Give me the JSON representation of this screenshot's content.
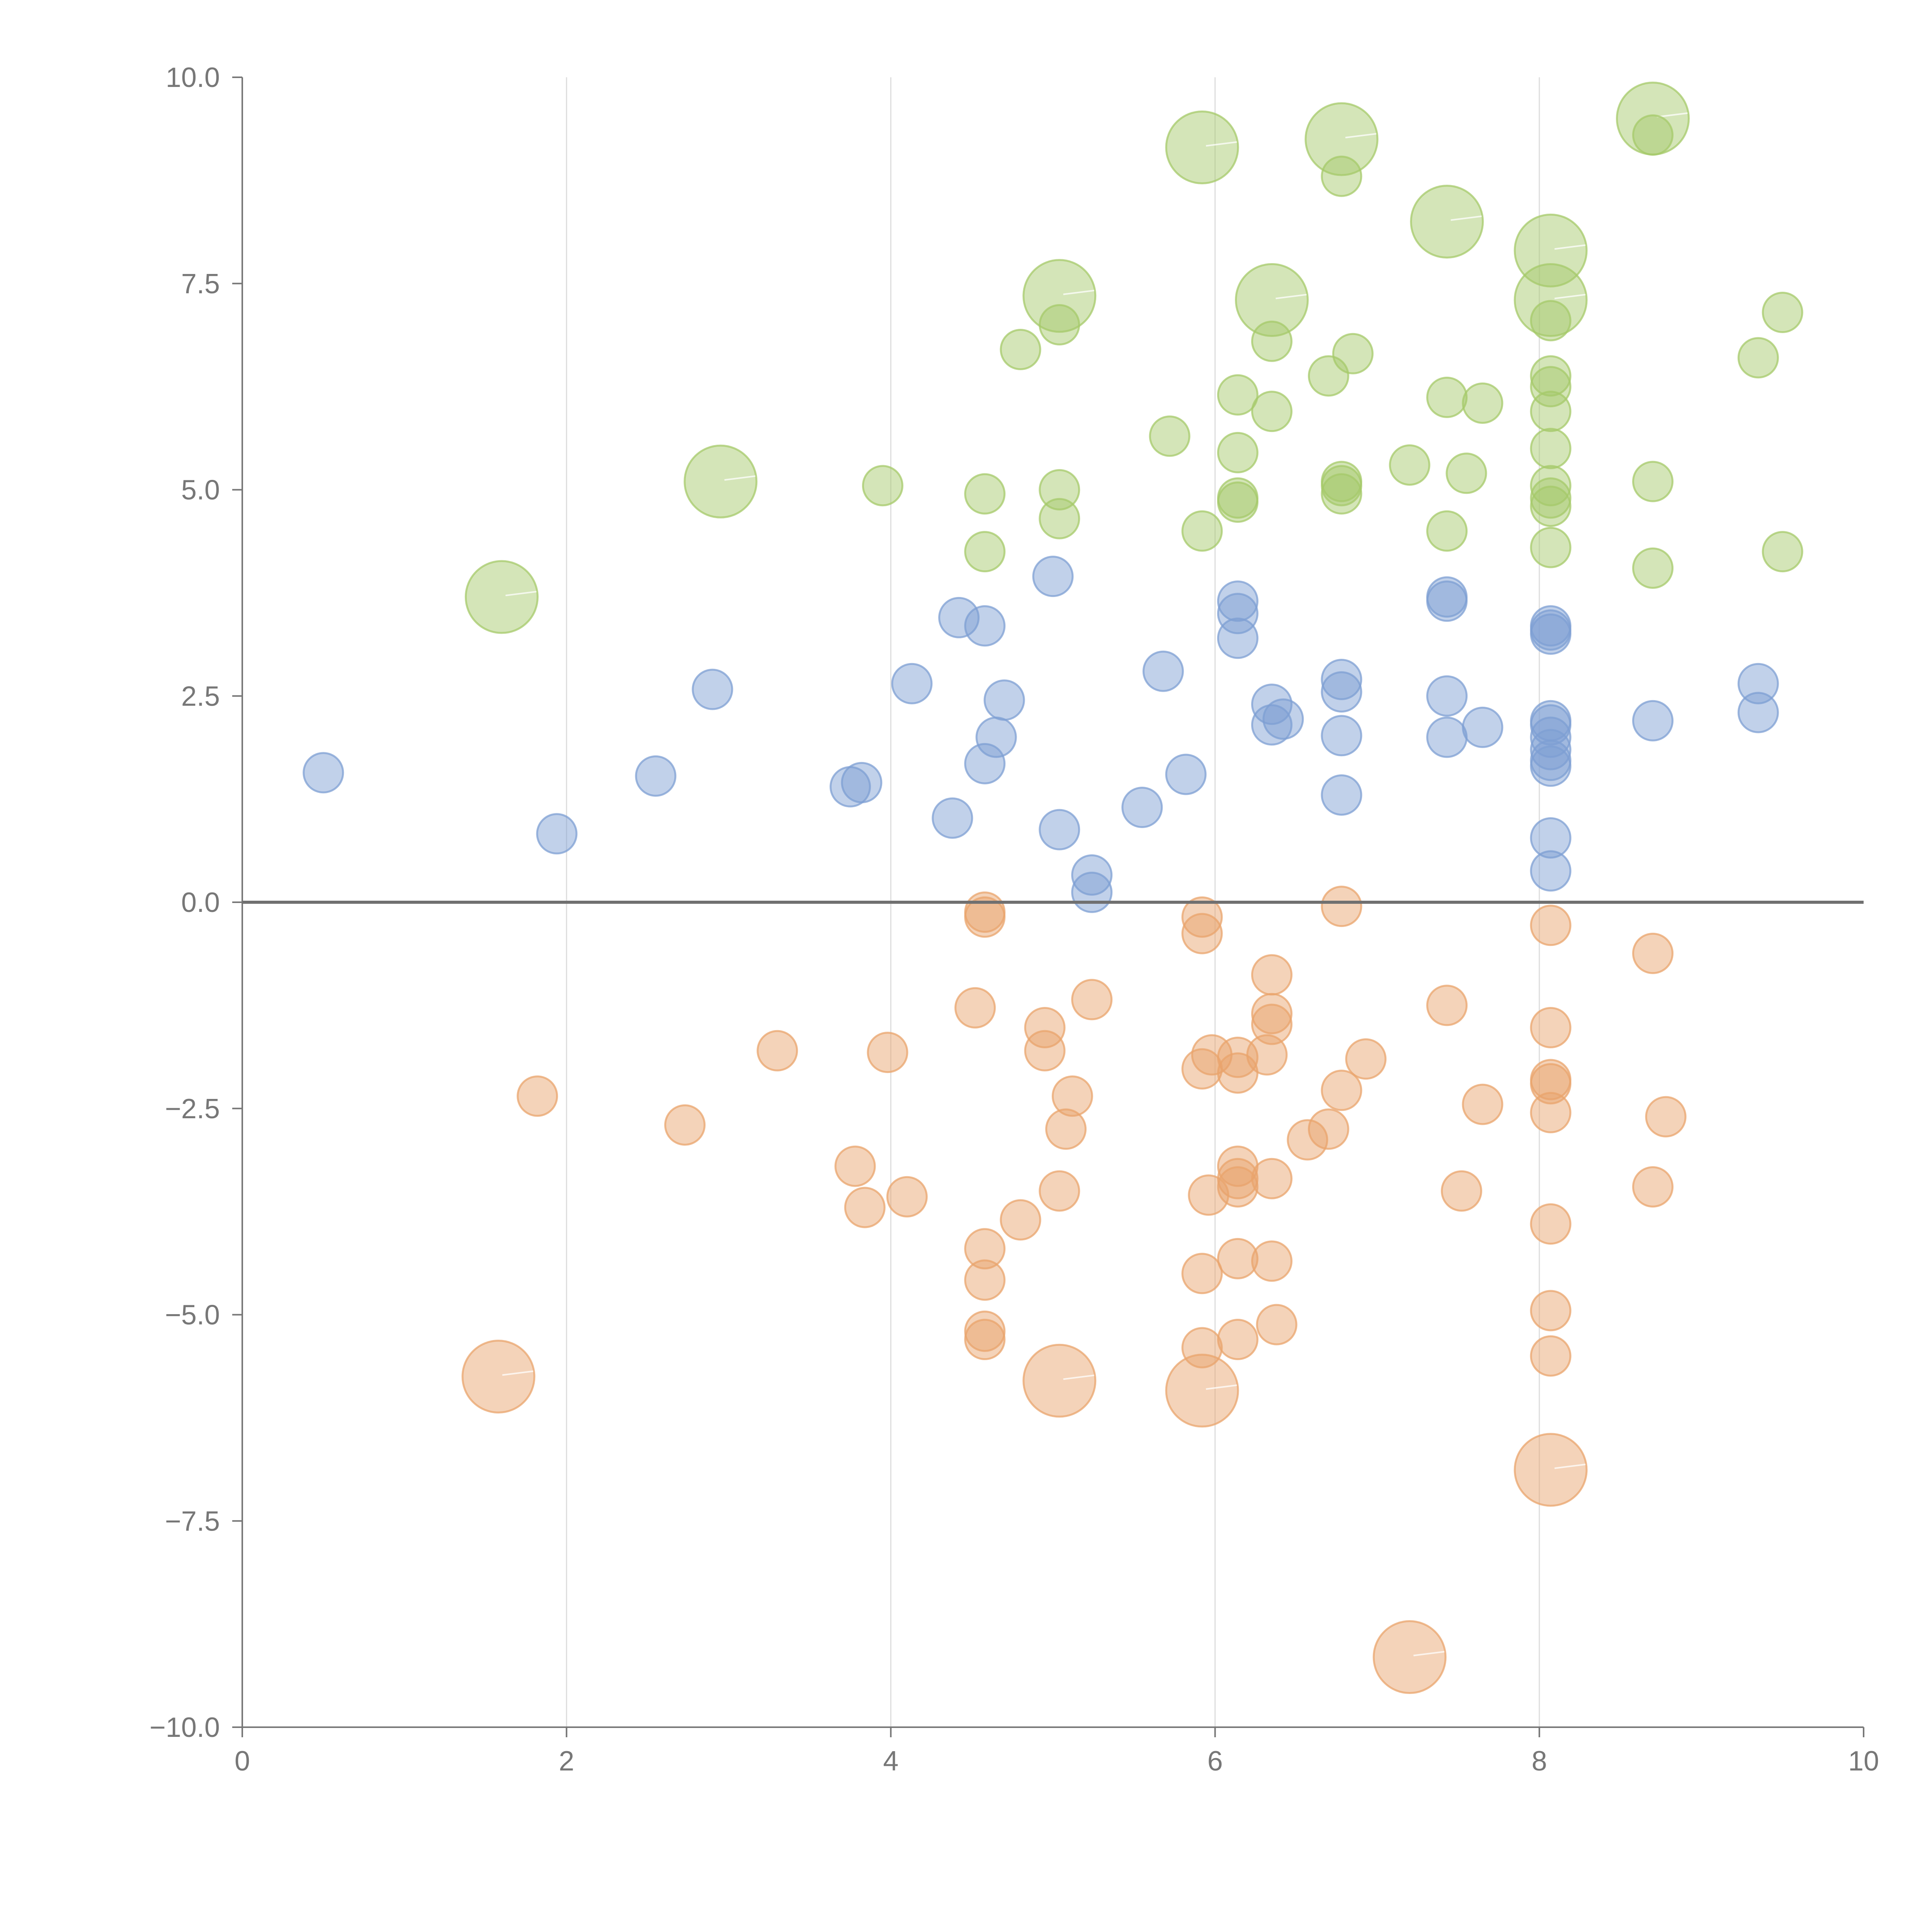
{
  "chart_data": {
    "type": "scatter",
    "title": "",
    "xlabel": "",
    "ylabel": "",
    "xlim": [
      0,
      10
    ],
    "ylim": [
      -10,
      10
    ],
    "grid": {
      "x": true,
      "y": false
    },
    "reference_line": {
      "y": 0
    },
    "x_ticks": [
      "0",
      "2",
      "4",
      "6",
      "8",
      "10"
    ],
    "x_tick_values": [
      0,
      2,
      4,
      6,
      8,
      10
    ],
    "y_ticks": [
      "10.0",
      "7.5",
      "5.0",
      "2.5",
      "0.0",
      "−2.5",
      "−5.0",
      "−7.5",
      "−10.0"
    ],
    "y_tick_values": [
      10,
      7.5,
      5,
      2.5,
      0,
      -2.5,
      -5,
      -7.5,
      -10
    ],
    "series": [
      {
        "name": "green",
        "color": "#a6c96a",
        "points": [
          [
            8.7,
            9.5,
            3
          ],
          [
            8.7,
            9.3,
            1
          ],
          [
            5.92,
            9.15,
            3
          ],
          [
            6.78,
            9.25,
            3
          ],
          [
            6.78,
            8.8,
            1
          ],
          [
            7.43,
            8.25,
            3
          ],
          [
            8.07,
            7.9,
            3
          ],
          [
            5.04,
            7.35,
            3
          ],
          [
            6.35,
            7.3,
            3
          ],
          [
            8.07,
            7.3,
            3
          ],
          [
            8.07,
            7.05,
            1
          ],
          [
            9.5,
            7.15,
            1
          ],
          [
            5.04,
            7.0,
            1
          ],
          [
            4.8,
            6.7,
            1
          ],
          [
            6.35,
            6.8,
            1
          ],
          [
            6.85,
            6.65,
            1
          ],
          [
            6.7,
            6.38,
            1
          ],
          [
            8.07,
            6.38,
            1
          ],
          [
            8.07,
            6.25,
            1
          ],
          [
            9.35,
            6.6,
            1
          ],
          [
            6.14,
            6.15,
            1
          ],
          [
            7.43,
            6.12,
            1
          ],
          [
            7.65,
            6.05,
            1
          ],
          [
            6.35,
            5.95,
            1
          ],
          [
            8.07,
            5.95,
            1
          ],
          [
            5.72,
            5.65,
            1
          ],
          [
            6.14,
            5.45,
            1
          ],
          [
            8.07,
            5.5,
            1
          ],
          [
            7.2,
            5.3,
            1
          ],
          [
            7.55,
            5.2,
            1
          ],
          [
            2.95,
            5.1,
            3
          ],
          [
            3.95,
            5.05,
            1
          ],
          [
            5.04,
            5.0,
            1
          ],
          [
            4.58,
            4.95,
            1
          ],
          [
            6.78,
            5.1,
            1
          ],
          [
            6.78,
            5.05,
            1
          ],
          [
            6.78,
            4.95,
            1
          ],
          [
            8.07,
            5.05,
            1
          ],
          [
            8.07,
            4.9,
            1
          ],
          [
            8.07,
            4.8,
            1
          ],
          [
            8.7,
            5.1,
            1
          ],
          [
            6.14,
            4.9,
            1
          ],
          [
            6.14,
            4.85,
            1
          ],
          [
            5.04,
            4.65,
            1
          ],
          [
            5.92,
            4.5,
            1
          ],
          [
            7.43,
            4.5,
            1
          ],
          [
            4.58,
            4.25,
            1
          ],
          [
            8.07,
            4.3,
            1
          ],
          [
            9.5,
            4.25,
            1
          ],
          [
            8.7,
            4.05,
            1
          ],
          [
            1.6,
            3.7,
            3
          ]
        ]
      },
      {
        "name": "blue",
        "color": "#7d9fd3",
        "points": [
          [
            5.0,
            3.95,
            1
          ],
          [
            6.14,
            3.65,
            1
          ],
          [
            6.14,
            3.5,
            1
          ],
          [
            7.43,
            3.7,
            1
          ],
          [
            7.43,
            3.65,
            1
          ],
          [
            4.42,
            3.45,
            1
          ],
          [
            4.58,
            3.35,
            1
          ],
          [
            8.07,
            3.35,
            1
          ],
          [
            8.07,
            3.3,
            1
          ],
          [
            8.07,
            3.25,
            1
          ],
          [
            6.14,
            3.2,
            1
          ],
          [
            5.68,
            2.8,
            1
          ],
          [
            2.9,
            2.58,
            1
          ],
          [
            4.13,
            2.65,
            1
          ],
          [
            6.78,
            2.7,
            1
          ],
          [
            6.78,
            2.55,
            1
          ],
          [
            9.35,
            2.65,
            1
          ],
          [
            7.43,
            2.5,
            1
          ],
          [
            4.7,
            2.45,
            1
          ],
          [
            6.35,
            2.4,
            1
          ],
          [
            6.42,
            2.22,
            1
          ],
          [
            6.35,
            2.15,
            1
          ],
          [
            7.65,
            2.12,
            1
          ],
          [
            8.07,
            2.2,
            1
          ],
          [
            8.07,
            2.15,
            1
          ],
          [
            8.07,
            2.0,
            1
          ],
          [
            8.7,
            2.2,
            1
          ],
          [
            9.35,
            2.3,
            1
          ],
          [
            6.78,
            2.02,
            1
          ],
          [
            7.43,
            2.0,
            1
          ],
          [
            4.65,
            2.0,
            1
          ],
          [
            8.07,
            1.85,
            1
          ],
          [
            8.07,
            1.72,
            1
          ],
          [
            8.07,
            1.65,
            1
          ],
          [
            4.58,
            1.68,
            1
          ],
          [
            0.5,
            1.57,
            1
          ],
          [
            2.55,
            1.53,
            1
          ],
          [
            5.82,
            1.55,
            1
          ],
          [
            3.82,
            1.45,
            1
          ],
          [
            3.75,
            1.4,
            1
          ],
          [
            6.78,
            1.3,
            1
          ],
          [
            5.55,
            1.15,
            1
          ],
          [
            4.38,
            1.02,
            1
          ],
          [
            5.04,
            0.88,
            1
          ],
          [
            1.94,
            0.83,
            1
          ],
          [
            8.07,
            0.78,
            1
          ],
          [
            8.07,
            0.38,
            1
          ],
          [
            5.24,
            0.33,
            1
          ],
          [
            5.24,
            0.12,
            1
          ]
        ]
      },
      {
        "name": "orange",
        "color": "#e9a46c",
        "points": [
          [
            4.58,
            -0.12,
            1
          ],
          [
            4.58,
            -0.18,
            1
          ],
          [
            5.92,
            -0.18,
            1
          ],
          [
            6.78,
            -0.05,
            1
          ],
          [
            8.07,
            -0.28,
            1
          ],
          [
            5.92,
            -0.38,
            1
          ],
          [
            8.7,
            -0.62,
            1
          ],
          [
            6.35,
            -0.88,
            1
          ],
          [
            5.24,
            -1.18,
            1
          ],
          [
            4.52,
            -1.28,
            1
          ],
          [
            7.43,
            -1.25,
            1
          ],
          [
            6.35,
            -1.35,
            1
          ],
          [
            6.35,
            -1.48,
            1
          ],
          [
            4.95,
            -1.52,
            1
          ],
          [
            8.07,
            -1.52,
            1
          ],
          [
            3.3,
            -1.8,
            1
          ],
          [
            3.98,
            -1.82,
            1
          ],
          [
            4.95,
            -1.8,
            1
          ],
          [
            5.98,
            -1.85,
            1
          ],
          [
            6.14,
            -1.88,
            1
          ],
          [
            6.32,
            -1.85,
            1
          ],
          [
            6.93,
            -1.9,
            1
          ],
          [
            5.92,
            -2.02,
            1
          ],
          [
            6.14,
            -2.07,
            1
          ],
          [
            8.07,
            -2.15,
            1
          ],
          [
            8.07,
            -2.2,
            1
          ],
          [
            6.78,
            -2.28,
            1
          ],
          [
            1.82,
            -2.35,
            1
          ],
          [
            5.12,
            -2.35,
            1
          ],
          [
            7.65,
            -2.45,
            1
          ],
          [
            8.07,
            -2.55,
            1
          ],
          [
            8.78,
            -2.6,
            1
          ],
          [
            2.73,
            -2.7,
            1
          ],
          [
            5.08,
            -2.75,
            1
          ],
          [
            6.7,
            -2.75,
            1
          ],
          [
            6.57,
            -2.88,
            1
          ],
          [
            3.78,
            -3.2,
            1
          ],
          [
            6.14,
            -3.2,
            1
          ],
          [
            6.14,
            -3.35,
            1
          ],
          [
            6.14,
            -3.45,
            1
          ],
          [
            6.35,
            -3.35,
            1
          ],
          [
            5.04,
            -3.5,
            1
          ],
          [
            7.52,
            -3.5,
            1
          ],
          [
            8.7,
            -3.45,
            1
          ],
          [
            5.96,
            -3.55,
            1
          ],
          [
            4.1,
            -3.57,
            1
          ],
          [
            3.84,
            -3.7,
            1
          ],
          [
            4.8,
            -3.85,
            1
          ],
          [
            8.07,
            -3.9,
            1
          ],
          [
            4.58,
            -4.2,
            1
          ],
          [
            6.14,
            -4.32,
            1
          ],
          [
            6.35,
            -4.35,
            1
          ],
          [
            5.92,
            -4.5,
            1
          ],
          [
            4.58,
            -4.58,
            1
          ],
          [
            8.07,
            -4.95,
            1
          ],
          [
            6.38,
            -5.12,
            1
          ],
          [
            4.58,
            -5.2,
            1
          ],
          [
            6.14,
            -5.3,
            1
          ],
          [
            4.58,
            -5.3,
            1
          ],
          [
            5.92,
            -5.4,
            1
          ],
          [
            8.07,
            -5.5,
            1
          ],
          [
            1.58,
            -5.75,
            3
          ],
          [
            5.04,
            -5.8,
            3
          ],
          [
            5.92,
            -5.92,
            3
          ],
          [
            8.07,
            -6.88,
            3
          ],
          [
            7.2,
            -9.15,
            3
          ]
        ]
      }
    ]
  }
}
